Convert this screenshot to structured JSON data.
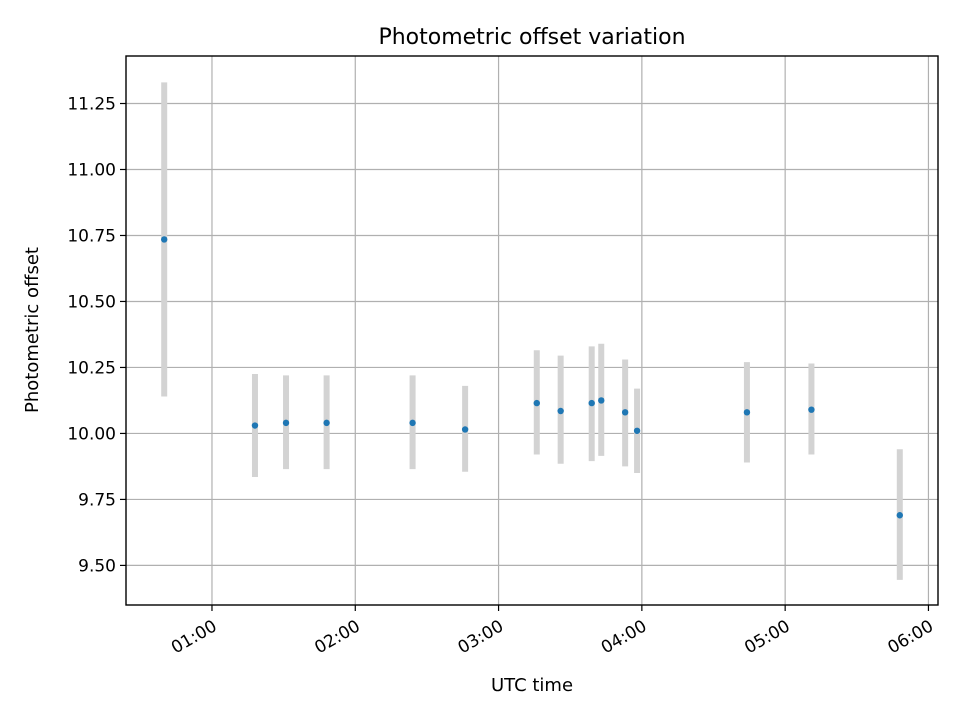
{
  "chart_data": {
    "type": "scatter",
    "title": "Photometric offset variation",
    "xlabel": "UTC time",
    "ylabel": "Photometric offset",
    "xlim": [
      "00:24",
      "06:04"
    ],
    "ylim": [
      9.35,
      11.43
    ],
    "grid": true,
    "x_ticks": [
      "01:00",
      "02:00",
      "03:00",
      "04:00",
      "05:00",
      "06:00"
    ],
    "y_ticks": [
      "9.50",
      "9.75",
      "10.00",
      "10.25",
      "10.50",
      "10.75",
      "11.00",
      "11.25"
    ],
    "colors": {
      "marker": "#1f77b4",
      "errorbar": "#d3d3d3",
      "grid": "#b0b0b0"
    },
    "points": [
      {
        "x": "00:40",
        "y": 10.735,
        "ylow": 10.14,
        "yhigh": 11.33
      },
      {
        "x": "01:18",
        "y": 10.03,
        "ylow": 9.835,
        "yhigh": 10.225
      },
      {
        "x": "01:31",
        "y": 10.04,
        "ylow": 9.865,
        "yhigh": 10.22
      },
      {
        "x": "01:48",
        "y": 10.04,
        "ylow": 9.865,
        "yhigh": 10.22
      },
      {
        "x": "02:24",
        "y": 10.04,
        "ylow": 9.865,
        "yhigh": 10.22
      },
      {
        "x": "02:46",
        "y": 10.015,
        "ylow": 9.855,
        "yhigh": 10.18
      },
      {
        "x": "03:16",
        "y": 10.115,
        "ylow": 9.92,
        "yhigh": 10.315
      },
      {
        "x": "03:26",
        "y": 10.085,
        "ylow": 9.885,
        "yhigh": 10.295
      },
      {
        "x": "03:39",
        "y": 10.115,
        "ylow": 9.895,
        "yhigh": 10.33
      },
      {
        "x": "03:43",
        "y": 10.125,
        "ylow": 9.915,
        "yhigh": 10.34
      },
      {
        "x": "03:53",
        "y": 10.08,
        "ylow": 9.875,
        "yhigh": 10.28
      },
      {
        "x": "03:58",
        "y": 10.01,
        "ylow": 9.85,
        "yhigh": 10.17
      },
      {
        "x": "04:44",
        "y": 10.08,
        "ylow": 9.89,
        "yhigh": 10.27
      },
      {
        "x": "05:11",
        "y": 10.09,
        "ylow": 9.92,
        "yhigh": 10.265
      },
      {
        "x": "05:48",
        "y": 9.69,
        "ylow": 9.445,
        "yhigh": 9.94
      }
    ]
  }
}
